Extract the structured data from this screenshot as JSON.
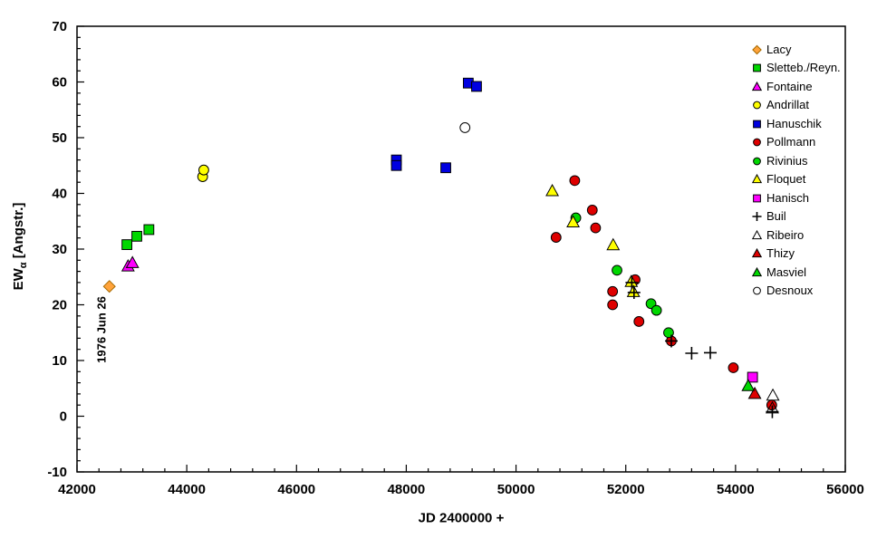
{
  "chart_data": {
    "type": "scatter",
    "title": "",
    "xlabel": "JD 2400000 +",
    "ylabel": "EWα [Angstr.]",
    "ylabel_parts": {
      "prefix": "EW",
      "subscript": "α",
      "suffix": " [Angstr.]"
    },
    "xlim": [
      42000,
      56000
    ],
    "ylim": [
      -10,
      70
    ],
    "x_tick_step": 2000,
    "x_minor_step": 400,
    "y_tick_step": 10,
    "y_minor_step": 2,
    "grid": false,
    "legend_position": "top-right-inside",
    "annotation": {
      "text": "1976 Jun 26",
      "x": 42450,
      "y": 15.5,
      "rotation": -90
    },
    "series": [
      {
        "name": "Lacy",
        "marker": "diamond",
        "color": "#FFA33B",
        "edge": "#A66A00",
        "open": false,
        "points": [
          [
            42590,
            23.3
          ]
        ]
      },
      {
        "name": "Sletteb./Reyn.",
        "marker": "square",
        "color": "#00D800",
        "edge": "#000000",
        "open": false,
        "points": [
          [
            42910,
            30.8
          ],
          [
            43090,
            32.3
          ],
          [
            43310,
            33.5
          ]
        ]
      },
      {
        "name": "Fontaine",
        "marker": "triangle",
        "color": "#FF00FF",
        "edge": "#000000",
        "open": false,
        "points": [
          [
            42930,
            26.9
          ],
          [
            43010,
            27.5
          ]
        ]
      },
      {
        "name": "Andrillat",
        "marker": "circle",
        "color": "#FFFF00",
        "edge": "#000000",
        "open": false,
        "points": [
          [
            44290,
            43.0
          ],
          [
            44310,
            44.2
          ]
        ]
      },
      {
        "name": "Hanuschik",
        "marker": "square",
        "color": "#0000E0",
        "edge": "#000000",
        "open": false,
        "points": [
          [
            47820,
            46.0
          ],
          [
            47820,
            45.0
          ],
          [
            48720,
            44.6
          ],
          [
            49130,
            59.8
          ],
          [
            49280,
            59.2
          ]
        ]
      },
      {
        "name": "Pollmann",
        "marker": "circle",
        "color": "#DE0000",
        "edge": "#000000",
        "open": false,
        "points": [
          [
            50730,
            32.1
          ],
          [
            51070,
            42.3
          ],
          [
            51390,
            37.0
          ],
          [
            51450,
            33.8
          ],
          [
            51760,
            22.4
          ],
          [
            51760,
            20.0
          ],
          [
            52170,
            24.5
          ],
          [
            52240,
            17.0
          ],
          [
            52830,
            13.5
          ],
          [
            53960,
            8.7
          ],
          [
            54660,
            2.0
          ]
        ]
      },
      {
        "name": "Rivinius",
        "marker": "circle",
        "color": "#00D800",
        "edge": "#000000",
        "open": false,
        "points": [
          [
            51090,
            35.6
          ],
          [
            51840,
            26.2
          ],
          [
            52460,
            20.2
          ],
          [
            52560,
            19.0
          ],
          [
            52780,
            15.0
          ]
        ]
      },
      {
        "name": "Floquet",
        "marker": "triangle",
        "color": "#FFFF00",
        "edge": "#000000",
        "open": false,
        "points": [
          [
            50660,
            40.4
          ],
          [
            51040,
            34.8
          ],
          [
            51770,
            30.7
          ],
          [
            52100,
            24.1
          ],
          [
            52140,
            22.3
          ]
        ]
      },
      {
        "name": "Hanisch",
        "marker": "square",
        "color": "#FF00FF",
        "edge": "#000000",
        "open": false,
        "points": [
          [
            54310,
            7.0
          ]
        ]
      },
      {
        "name": "Buil",
        "marker": "plus",
        "color": "#000000",
        "edge": "#000000",
        "open": false,
        "points": [
          [
            52110,
            24.0
          ],
          [
            52150,
            22.2
          ],
          [
            52830,
            13.5
          ],
          [
            53200,
            11.3
          ],
          [
            53540,
            11.4
          ],
          [
            54670,
            0.8
          ]
        ]
      },
      {
        "name": "Ribeiro",
        "marker": "triangle",
        "color": "#FFFFFF",
        "edge": "#000000",
        "open": true,
        "points": [
          [
            54680,
            3.7
          ],
          [
            54670,
            1.4
          ]
        ]
      },
      {
        "name": "Thizy",
        "marker": "triangle",
        "color": "#DE0000",
        "edge": "#000000",
        "open": false,
        "points": [
          [
            54350,
            4.0
          ]
        ]
      },
      {
        "name": "Masviel",
        "marker": "triangle",
        "color": "#00D800",
        "edge": "#000000",
        "open": false,
        "points": [
          [
            54230,
            5.4
          ]
        ]
      },
      {
        "name": "Desnoux",
        "marker": "circle",
        "color": "#FFFFFF",
        "edge": "#000000",
        "open": true,
        "points": [
          [
            49070,
            51.8
          ]
        ]
      }
    ]
  },
  "colors": {
    "background": "#FFFFFF",
    "axis": "#000000",
    "text": "#000000"
  }
}
